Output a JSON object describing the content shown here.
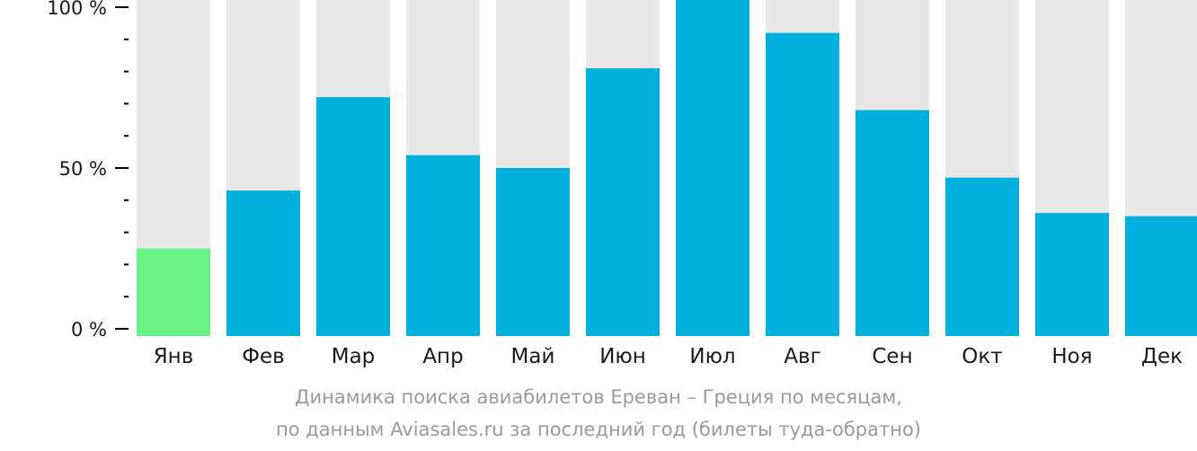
{
  "chart_data": {
    "type": "bar",
    "categories": [
      "Янв",
      "Фев",
      "Мар",
      "Апр",
      "Май",
      "Июн",
      "Июл",
      "Авг",
      "Сен",
      "Окт",
      "Ноя",
      "Дек"
    ],
    "values": [
      25,
      43,
      72,
      54,
      50,
      81,
      105,
      92,
      68,
      47,
      36,
      35
    ],
    "ylim": [
      0,
      100
    ],
    "yticks": [
      {
        "value": 0,
        "label": "0 %"
      },
      {
        "value": 50,
        "label": "50 %"
      },
      {
        "value": 100,
        "label": "100 %"
      }
    ],
    "minor_ytick_step": 10,
    "highlight_index": 0,
    "colors": {
      "bar": "#00afdc",
      "highlight": "#6af384",
      "background_bar": "#e8e8e8",
      "axis": "#000000",
      "tick_label": "#1a1a1a",
      "category_label": "#1a1a1a"
    },
    "caption_line1": "Динамика поиска авиабилетов Ереван – Греция по месяцам,",
    "caption_line2": "по данным Aviasales.ru за последний год (билеты туда-обратно)"
  }
}
